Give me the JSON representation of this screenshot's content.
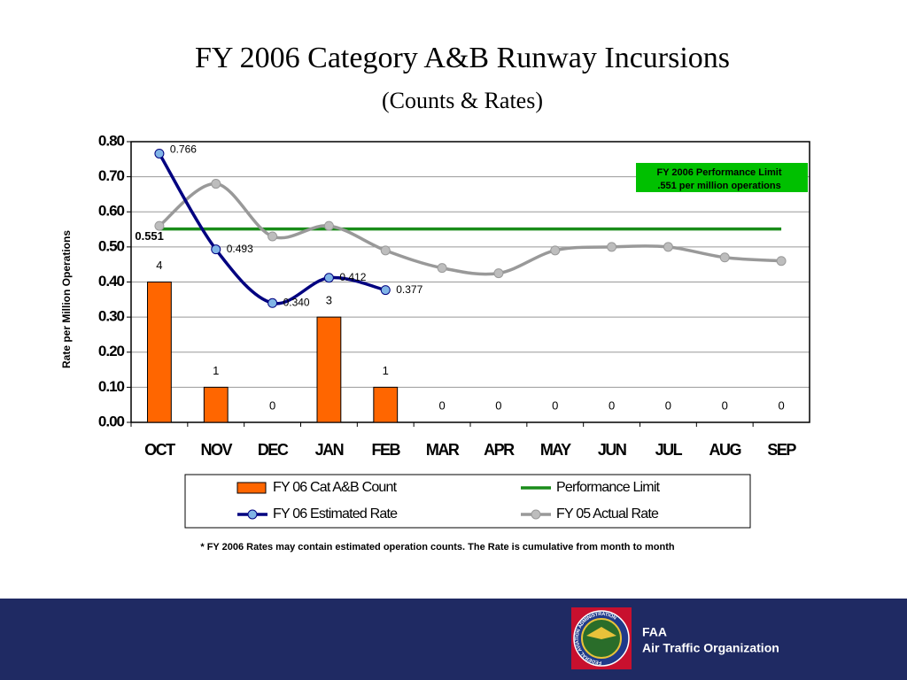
{
  "chart_data": {
    "type": "combo",
    "title": "FY 2006 Category A&B Runway Incursions",
    "subtitle": "(Counts & Rates)",
    "y_label": "Rate per Million Operations",
    "categories": [
      "OCT",
      "NOV",
      "DEC",
      "JAN",
      "FEB",
      "MAR",
      "APR",
      "MAY",
      "JUN",
      "JUL",
      "AUG",
      "SEP"
    ],
    "ylim": [
      0,
      0.8
    ],
    "yticks": [
      {
        "value": 0,
        "label": "0.00"
      },
      {
        "value": 0.1,
        "label": "0.10"
      },
      {
        "value": 0.2,
        "label": "0.20"
      },
      {
        "value": 0.3,
        "label": "0.30"
      },
      {
        "value": 0.4,
        "label": "0.40"
      },
      {
        "value": 0.5,
        "label": "0.50"
      },
      {
        "value": 0.6,
        "label": "0.60"
      },
      {
        "value": 0.7,
        "label": "0.70"
      },
      {
        "value": 0.8,
        "label": "0.80"
      }
    ],
    "y2lim": [
      0,
      8
    ],
    "grid": true,
    "series": [
      {
        "name": "FY 06 Cat A&B Count",
        "type": "bar",
        "axis": "y2",
        "color": "#ff6600",
        "values": [
          4,
          1,
          0,
          3,
          1,
          0,
          0,
          0,
          0,
          0,
          0,
          0
        ]
      },
      {
        "name": "FY 06 Estimated Rate",
        "type": "line",
        "color": "#000080",
        "marker": "#80b4e6",
        "values": [
          0.766,
          0.493,
          0.34,
          0.412,
          0.377,
          null,
          null,
          null,
          null,
          null,
          null,
          null
        ],
        "value_labels": [
          "0.766",
          "0.493",
          "0.340",
          "0.412",
          "0.377",
          null,
          null,
          null,
          null,
          null,
          null,
          null
        ]
      },
      {
        "name": "Performance Limit",
        "type": "line",
        "color": "#1a8c1a",
        "values": [
          0.551,
          0.551,
          0.551,
          0.551,
          0.551,
          0.551,
          0.551,
          0.551,
          0.551,
          0.551,
          0.551,
          0.551
        ],
        "value_labels": [
          "0.551",
          null,
          null,
          null,
          null,
          null,
          null,
          null,
          null,
          null,
          null,
          null
        ]
      },
      {
        "name": "FY 05 Actual Rate",
        "type": "line",
        "color": "#999999",
        "marker": "#bdbdbd",
        "values": [
          0.56,
          0.68,
          0.53,
          0.56,
          0.49,
          0.44,
          0.425,
          0.49,
          0.5,
          0.5,
          0.47,
          0.46
        ]
      }
    ],
    "annotation": [
      "FY 2006 Performance Limit",
      ".551 per million operations"
    ],
    "note": "* FY 2006 Rates may contain estimated operation counts.  The Rate is cumulative from month to month"
  },
  "footer": {
    "logo_text": "FEDERAL AVIATION ADMINISTRATION",
    "line1": "FAA",
    "line2": "Air Traffic Organization"
  }
}
